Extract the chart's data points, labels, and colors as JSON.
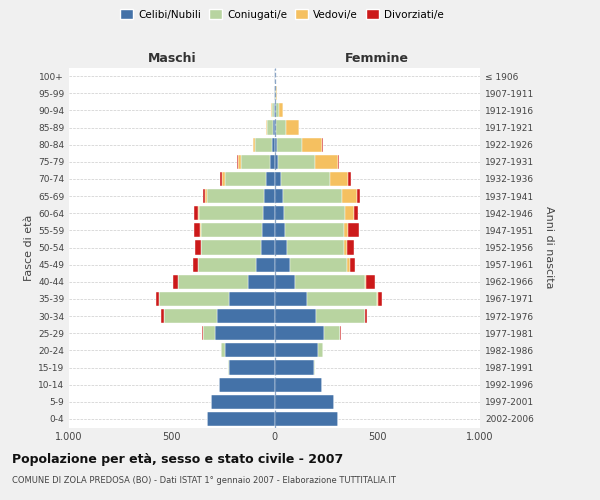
{
  "age_groups": [
    "0-4",
    "5-9",
    "10-14",
    "15-19",
    "20-24",
    "25-29",
    "30-34",
    "35-39",
    "40-44",
    "45-49",
    "50-54",
    "55-59",
    "60-64",
    "65-69",
    "70-74",
    "75-79",
    "80-84",
    "85-89",
    "90-94",
    "95-99",
    "100+"
  ],
  "birth_years": [
    "2002-2006",
    "1997-2001",
    "1992-1996",
    "1987-1991",
    "1982-1986",
    "1977-1981",
    "1972-1976",
    "1967-1971",
    "1962-1966",
    "1957-1961",
    "1952-1956",
    "1947-1951",
    "1942-1946",
    "1937-1941",
    "1932-1936",
    "1927-1931",
    "1922-1926",
    "1917-1921",
    "1912-1916",
    "1907-1911",
    "≤ 1906"
  ],
  "males": {
    "celibe": [
      330,
      310,
      270,
      220,
      240,
      290,
      280,
      220,
      130,
      90,
      68,
      60,
      55,
      50,
      40,
      24,
      14,
      7,
      4,
      2,
      2
    ],
    "coniugato": [
      0,
      1,
      2,
      5,
      20,
      60,
      260,
      340,
      340,
      280,
      290,
      300,
      310,
      280,
      200,
      140,
      80,
      30,
      10,
      2,
      0
    ],
    "vedovo": [
      0,
      0,
      0,
      0,
      0,
      0,
      0,
      1,
      1,
      2,
      2,
      3,
      5,
      10,
      15,
      15,
      10,
      5,
      2,
      0,
      0
    ],
    "divorziato": [
      0,
      0,
      0,
      0,
      1,
      3,
      10,
      15,
      25,
      25,
      25,
      30,
      20,
      10,
      10,
      3,
      2,
      1,
      0,
      0,
      0
    ]
  },
  "females": {
    "nubile": [
      310,
      290,
      230,
      190,
      210,
      240,
      200,
      160,
      100,
      75,
      60,
      50,
      45,
      40,
      30,
      18,
      12,
      8,
      5,
      2,
      2
    ],
    "coniugata": [
      0,
      1,
      2,
      5,
      25,
      80,
      240,
      340,
      340,
      280,
      280,
      290,
      300,
      290,
      240,
      180,
      120,
      50,
      15,
      3,
      0
    ],
    "vedova": [
      0,
      0,
      0,
      0,
      0,
      1,
      2,
      3,
      5,
      10,
      15,
      20,
      40,
      70,
      90,
      110,
      100,
      60,
      20,
      5,
      2
    ],
    "divorziata": [
      0,
      0,
      0,
      0,
      1,
      3,
      10,
      20,
      45,
      25,
      30,
      50,
      20,
      15,
      10,
      5,
      5,
      2,
      1,
      0,
      0
    ]
  },
  "colors": {
    "celibe": "#4472a8",
    "coniugato": "#b8d4a0",
    "vedovo": "#f5c060",
    "divorziato": "#cc1a1a"
  },
  "xlim": 1000,
  "title": "Popolazione per età, sesso e stato civile - 2007",
  "subtitle": "COMUNE DI ZOLA PREDOSA (BO) - Dati ISTAT 1° gennaio 2007 - Elaborazione TUTTITALIA.IT",
  "ylabel_left": "Fasce di età",
  "ylabel_right": "Anni di nascita",
  "xlabel_left": "Maschi",
  "xlabel_right": "Femmine",
  "background_color": "#f0f0f0",
  "plot_bg_color": "#ffffff"
}
